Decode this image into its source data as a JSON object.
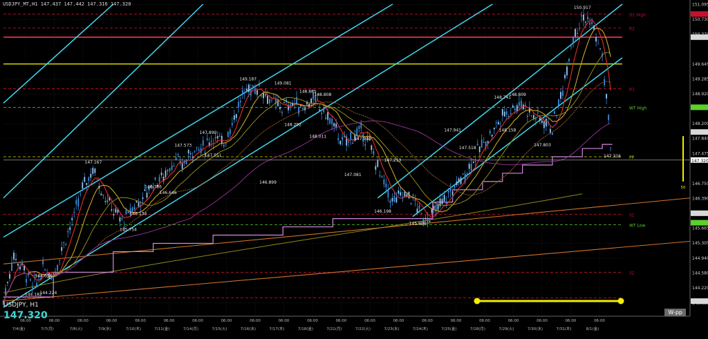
{
  "header": {
    "symbol_line": "USDJPY_MT,H1  147.437 147.442 147.316 147.320",
    "pair_label": "USDJPY, H1",
    "current_price": "147.320",
    "wpp_button": "W-pp"
  },
  "colors": {
    "background": "#000000",
    "candle": "#3b8ee0",
    "channel": "#41d9ee",
    "ma_red": "#e0302a",
    "ma_gold": "#c8a62a",
    "ma_olive": "#8e8a1c",
    "ma_brown": "#9a5a24",
    "ma_purple": "#8e2f8e",
    "step_line": "#d68ae0",
    "wt_low": "#5ad22a",
    "trend_orange": "#d2722a",
    "high_line": "#c8102e",
    "pivot_line": "#d8d800",
    "period_bar": "#f0f000"
  },
  "chart_data": {
    "type": "candlestick",
    "symbol": "USDJPY",
    "timeframe": "H1",
    "ylim": [
      143.5,
      151.1
    ],
    "y_ticks": [
      "151.095",
      "150.730",
      "150.370",
      "149.645",
      "149.285",
      "148.920",
      "148.560",
      "148.200",
      "147.840",
      "147.475",
      "146.750",
      "146.390",
      "146.025",
      "145.665",
      "145.305",
      "144.940",
      "144.580",
      "144.220",
      "143.855"
    ],
    "x_date_labels": [
      "7/4(金)",
      "7/7(月)",
      "7/8(火)",
      "7/9(水)",
      "7/10(木)",
      "7/11(金)",
      "7/14(月)",
      "7/15(火)",
      "7/16(水)",
      "7/17(木)",
      "7/18(金)",
      "7/21(月)",
      "7/22(火)",
      "7/23(水)",
      "7/24(木)",
      "7/25(金)",
      "7/28(月)",
      "7/29(火)",
      "7/30(水)",
      "7/31(木)",
      "8/1(金)"
    ],
    "x_time_label": "06:00",
    "price_path": [
      [
        0,
        143.9
      ],
      [
        2,
        145.0
      ],
      [
        4,
        144.7
      ],
      [
        6,
        144.2
      ],
      [
        8,
        144.7
      ],
      [
        10,
        144.5
      ],
      [
        12,
        145.3
      ],
      [
        14,
        145.9
      ],
      [
        16,
        146.7
      ],
      [
        18,
        147.1
      ],
      [
        20,
        146.5
      ],
      [
        22,
        146.1
      ],
      [
        24,
        145.8
      ],
      [
        26,
        146.2
      ],
      [
        28,
        146.4
      ],
      [
        30,
        146.8
      ],
      [
        32,
        146.9
      ],
      [
        34,
        147.3
      ],
      [
        36,
        147.2
      ],
      [
        38,
        147.6
      ],
      [
        40,
        147.6
      ],
      [
        42,
        147.9
      ],
      [
        44,
        147.7
      ],
      [
        46,
        148.3
      ],
      [
        48,
        148.9
      ],
      [
        50,
        149.1
      ],
      [
        52,
        149.0
      ],
      [
        54,
        148.7
      ],
      [
        56,
        148.6
      ],
      [
        58,
        148.7
      ],
      [
        60,
        148.6
      ],
      [
        62,
        148.8
      ],
      [
        64,
        148.5
      ],
      [
        66,
        148.2
      ],
      [
        68,
        147.7
      ],
      [
        70,
        147.9
      ],
      [
        72,
        148.0
      ],
      [
        74,
        147.5
      ],
      [
        76,
        146.8
      ],
      [
        78,
        146.3
      ],
      [
        80,
        146.5
      ],
      [
        82,
        146.4
      ],
      [
        84,
        145.9
      ],
      [
        86,
        146.0
      ],
      [
        88,
        146.3
      ],
      [
        90,
        146.6
      ],
      [
        92,
        146.9
      ],
      [
        94,
        147.3
      ],
      [
        96,
        147.7
      ],
      [
        98,
        148.0
      ],
      [
        100,
        148.4
      ],
      [
        102,
        148.6
      ],
      [
        104,
        148.7
      ],
      [
        106,
        148.4
      ],
      [
        108,
        148.3
      ],
      [
        110,
        148.1
      ],
      [
        112,
        149.0
      ],
      [
        114,
        150.3
      ],
      [
        116,
        150.8
      ],
      [
        118,
        150.6
      ],
      [
        120,
        149.8
      ],
      [
        122,
        147.3
      ]
    ],
    "price_labels": [
      {
        "x": 6,
        "y": 144.182,
        "text": "144.182"
      },
      {
        "x": 8,
        "y": 144.634,
        "text": "144.634"
      },
      {
        "x": 9,
        "y": 144.224,
        "text": "144.224"
      },
      {
        "x": 18,
        "y": 147.167,
        "text": "147.167"
      },
      {
        "x": 25,
        "y": 145.754,
        "text": "145.754"
      },
      {
        "x": 27,
        "y": 146.134,
        "text": "146.134"
      },
      {
        "x": 30,
        "y": 146.786,
        "text": "146.786"
      },
      {
        "x": 33,
        "y": 146.646,
        "text": "146.646"
      },
      {
        "x": 36,
        "y": 147.573,
        "text": "147.573"
      },
      {
        "x": 41,
        "y": 147.89,
        "text": "147.890"
      },
      {
        "x": 42,
        "y": 147.551,
        "text": "147.551"
      },
      {
        "x": 49,
        "y": 149.187,
        "text": "149.187"
      },
      {
        "x": 53,
        "y": 146.899,
        "text": "146.899"
      },
      {
        "x": 56,
        "y": 149.081,
        "text": "149.081"
      },
      {
        "x": 58,
        "y": 148.292,
        "text": "148.292"
      },
      {
        "x": 61,
        "y": 148.885,
        "text": "148.885"
      },
      {
        "x": 64,
        "y": 148.808,
        "text": "148.808"
      },
      {
        "x": 63,
        "y": 148.011,
        "text": "148.011"
      },
      {
        "x": 72,
        "y": 147.949,
        "text": "147.949"
      },
      {
        "x": 70,
        "y": 147.081,
        "text": "147.081"
      },
      {
        "x": 78,
        "y": 147.213,
        "text": "147.213"
      },
      {
        "x": 76,
        "y": 146.198,
        "text": "146.198"
      },
      {
        "x": 83,
        "y": 145.9,
        "text": "145.900"
      },
      {
        "x": 90,
        "y": 147.941,
        "text": "147.941"
      },
      {
        "x": 93,
        "y": 147.518,
        "text": "147.518"
      },
      {
        "x": 100,
        "y": 148.741,
        "text": "148.741"
      },
      {
        "x": 101,
        "y": 148.158,
        "text": "148.158"
      },
      {
        "x": 103,
        "y": 148.809,
        "text": "148.809"
      },
      {
        "x": 108,
        "y": 147.803,
        "text": "147.803"
      },
      {
        "x": 116,
        "y": 150.917,
        "text": "150.917"
      },
      {
        "x": 122,
        "y": 147.316,
        "text": "147.316"
      }
    ],
    "levels": [
      {
        "name": "D High",
        "text": "D1 High",
        "price": 150.86,
        "color": "#c8102e",
        "dash": true
      },
      {
        "name": "R2",
        "text": "R2",
        "price": 150.52,
        "color": "#c8102e",
        "dash": true
      },
      {
        "name": "pink",
        "text": "",
        "price": 150.3,
        "color": "#ff3050",
        "dash": false
      },
      {
        "name": "yellow",
        "text": "",
        "price": 149.65,
        "color": "#d8d800",
        "dash": false
      },
      {
        "name": "R1",
        "text": "R1",
        "price": 149.05,
        "color": "#c8102e",
        "dash": true
      },
      {
        "name": "WT High",
        "text": "WT High",
        "price": 148.6,
        "color": "#5ad22a",
        "dash": true
      },
      {
        "name": "PP",
        "text": "PP",
        "price": 147.4,
        "color": "#d8d800",
        "dash": true
      },
      {
        "name": "S1",
        "text": "S1",
        "price": 146.0,
        "color": "#c8102e",
        "dash": true
      },
      {
        "name": "WT Low",
        "text": "WT Low",
        "price": 145.75,
        "color": "#5ad22a",
        "dash": true
      },
      {
        "name": "S2",
        "text": "S2",
        "price": 144.6,
        "color": "#c8102e",
        "dash": true
      },
      {
        "name": "bottom",
        "text": "",
        "price": 143.98,
        "color": "#c8102e",
        "dash": true
      }
    ],
    "current_price_value": 147.32,
    "period_marker": "50",
    "grid": true
  }
}
